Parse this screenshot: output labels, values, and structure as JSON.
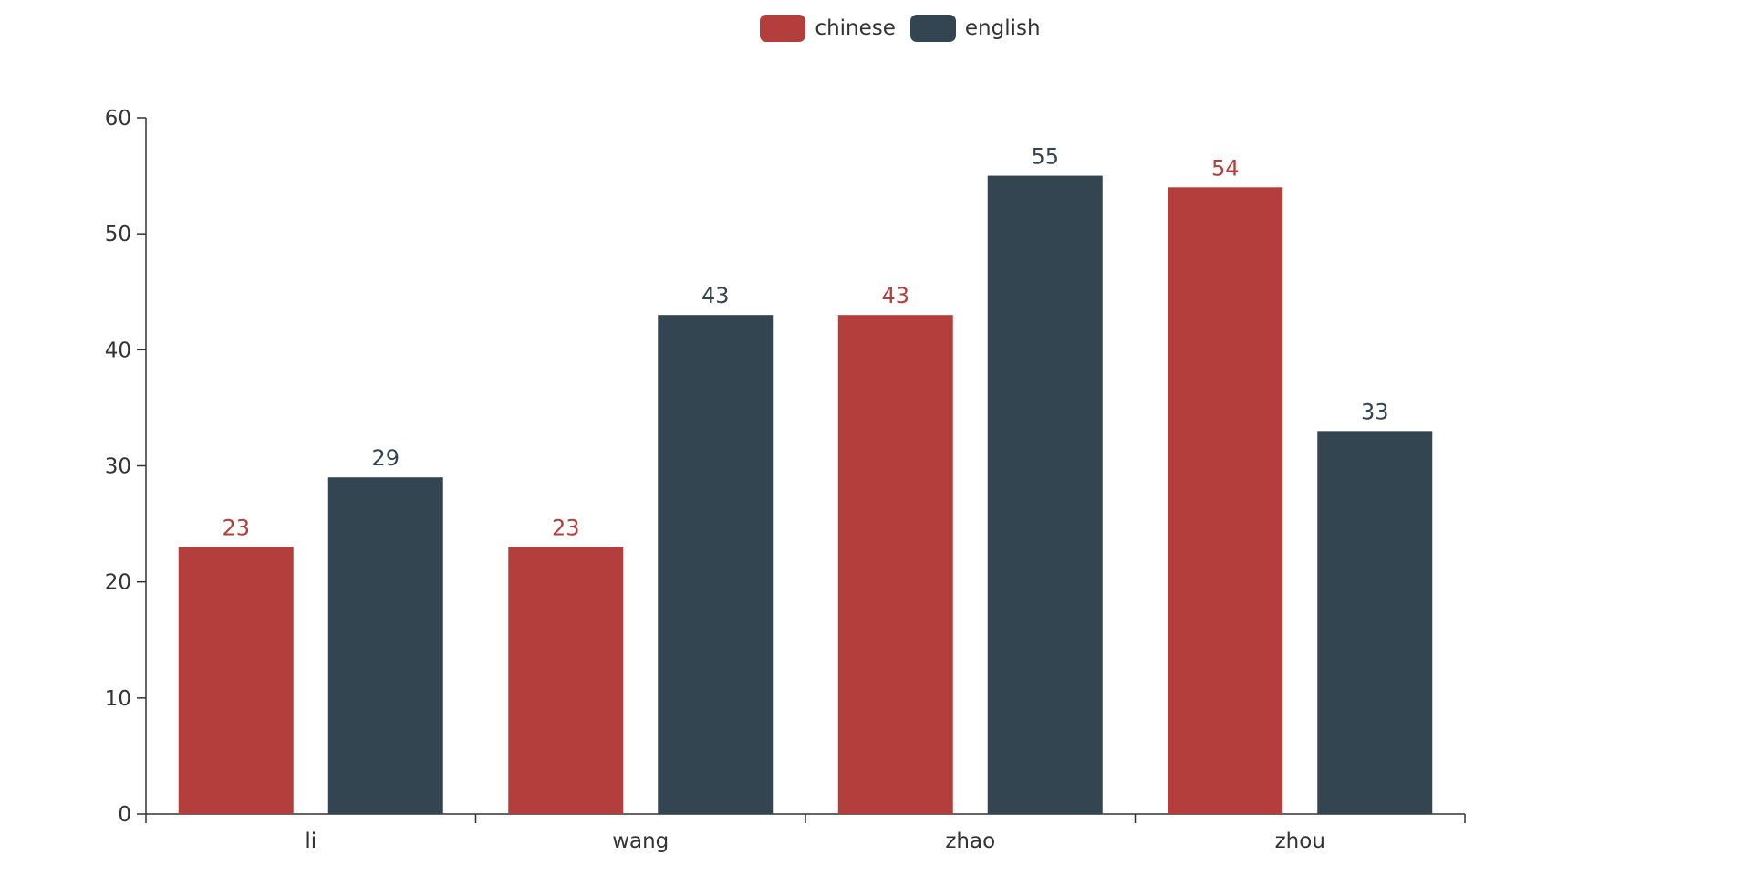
{
  "chart_data": {
    "type": "bar",
    "categories": [
      "li",
      "wang",
      "zhao",
      "zhou"
    ],
    "series": [
      {
        "name": "chinese",
        "values": [
          23,
          23,
          43,
          54
        ],
        "color": "#b43e3b"
      },
      {
        "name": "english",
        "values": [
          29,
          43,
          55,
          33
        ],
        "color": "#344552"
      }
    ],
    "y_ticks": [
      0,
      10,
      20,
      30,
      40,
      50,
      60
    ],
    "ylim": [
      0,
      60
    ],
    "legend_position": "top-center",
    "grid": false,
    "data_labels": true
  }
}
